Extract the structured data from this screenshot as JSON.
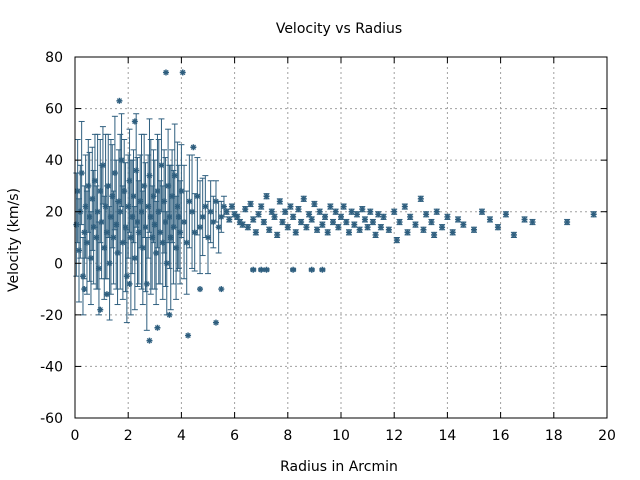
{
  "chart_data": {
    "type": "scatter",
    "title": "Velocity vs Radius",
    "xlabel": "Radius in Arcmin",
    "ylabel": "Velocity (km/s)",
    "xlim": [
      0,
      20
    ],
    "ylim": [
      -60,
      80
    ],
    "xticks": [
      0,
      2,
      4,
      6,
      8,
      10,
      12,
      14,
      16,
      18,
      20
    ],
    "yticks": [
      -60,
      -40,
      -20,
      0,
      20,
      40,
      60,
      80
    ],
    "grid": true,
    "legend": "none",
    "colors": {
      "series": "#2f5f7f",
      "grid": "#a0a0a0",
      "frame": "#000000"
    },
    "series": [
      {
        "marker": "star",
        "error_bars": "vertical",
        "points": [
          [
            0.05,
            15,
            20
          ],
          [
            0.1,
            28,
            20
          ],
          [
            0.15,
            5,
            20
          ],
          [
            0.2,
            20,
            18
          ],
          [
            0.25,
            35,
            20
          ],
          [
            0.3,
            -5,
            15
          ],
          [
            0.35,
            12,
            18
          ],
          [
            0.4,
            22,
            20
          ],
          [
            0.45,
            8,
            20
          ],
          [
            0.5,
            30,
            18
          ],
          [
            0.55,
            18,
            25
          ],
          [
            0.6,
            2,
            18
          ],
          [
            0.65,
            25,
            20
          ],
          [
            0.7,
            14,
            22
          ],
          [
            0.75,
            32,
            18
          ],
          [
            0.8,
            10,
            20
          ],
          [
            0.85,
            20,
            30
          ],
          [
            0.9,
            -2,
            18
          ],
          [
            0.95,
            28,
            20
          ],
          [
            1.0,
            16,
            22
          ],
          [
            1.05,
            38,
            15
          ],
          [
            1.1,
            6,
            20
          ],
          [
            1.15,
            22,
            28
          ],
          [
            1.2,
            12,
            18
          ],
          [
            1.25,
            30,
            20
          ],
          [
            1.3,
            0,
            22
          ],
          [
            1.35,
            18,
            30
          ],
          [
            1.4,
            26,
            20
          ],
          [
            1.45,
            10,
            18
          ],
          [
            1.5,
            35,
            22
          ],
          [
            1.55,
            15,
            25
          ],
          [
            1.6,
            4,
            20
          ],
          [
            1.65,
            24,
            20
          ],
          [
            1.7,
            20,
            30
          ],
          [
            1.75,
            40,
            18
          ],
          [
            1.8,
            8,
            22
          ],
          [
            1.85,
            28,
            20
          ],
          [
            1.9,
            14,
            25
          ],
          [
            1.95,
            -5,
            18
          ],
          [
            2.0,
            22,
            20
          ],
          [
            2.05,
            32,
            20
          ],
          [
            2.1,
            10,
            30
          ],
          [
            2.15,
            18,
            22
          ],
          [
            2.2,
            26,
            18
          ],
          [
            2.25,
            2,
            20
          ],
          [
            2.3,
            36,
            22
          ],
          [
            2.35,
            16,
            25
          ],
          [
            2.4,
            12,
            20
          ],
          [
            2.45,
            24,
            18
          ],
          [
            2.5,
            20,
            30
          ],
          [
            2.55,
            6,
            22
          ],
          [
            2.6,
            30,
            20
          ],
          [
            2.65,
            14,
            25
          ],
          [
            2.7,
            -8,
            18
          ],
          [
            2.75,
            22,
            20
          ],
          [
            2.8,
            34,
            22
          ],
          [
            2.85,
            18,
            30
          ],
          [
            2.9,
            10,
            20
          ],
          [
            2.95,
            26,
            18
          ],
          [
            3.0,
            15,
            25
          ],
          [
            3.05,
            4,
            20
          ],
          [
            3.1,
            28,
            22
          ],
          [
            3.15,
            20,
            28
          ],
          [
            3.2,
            12,
            20
          ],
          [
            3.25,
            38,
            18
          ],
          [
            3.3,
            8,
            22
          ],
          [
            3.35,
            24,
            20
          ],
          [
            3.4,
            16,
            25
          ],
          [
            3.45,
            0,
            20
          ],
          [
            3.5,
            30,
            22
          ],
          [
            3.55,
            18,
            20
          ],
          [
            3.6,
            10,
            28
          ],
          [
            3.65,
            26,
            18
          ],
          [
            3.7,
            14,
            22
          ],
          [
            3.75,
            34,
            20
          ],
          [
            3.8,
            6,
            20
          ],
          [
            3.85,
            22,
            25
          ],
          [
            3.9,
            18,
            20
          ],
          [
            3.95,
            12,
            20
          ],
          [
            4.0,
            28,
            18
          ],
          [
            4.1,
            16,
            22
          ],
          [
            4.2,
            8,
            20
          ],
          [
            4.3,
            24,
            18
          ],
          [
            4.4,
            20,
            22
          ],
          [
            4.5,
            12,
            15
          ],
          [
            4.6,
            26,
            15
          ],
          [
            4.7,
            14,
            18
          ],
          [
            4.8,
            18,
            15
          ],
          [
            4.9,
            22,
            12
          ],
          [
            5.0,
            10,
            14
          ],
          [
            5.1,
            20,
            12
          ],
          [
            5.2,
            16,
            10
          ],
          [
            5.3,
            24,
            8
          ],
          [
            5.4,
            14,
            10
          ],
          [
            5.5,
            18,
            6
          ],
          [
            5.6,
            22,
            4
          ],
          [
            1.67,
            63,
            0
          ],
          [
            3.42,
            74,
            0
          ],
          [
            4.05,
            74,
            0
          ],
          [
            2.05,
            -8,
            0
          ],
          [
            2.8,
            -30,
            0
          ],
          [
            3.1,
            -25,
            0
          ],
          [
            3.55,
            -20,
            0
          ],
          [
            4.25,
            -28,
            0
          ],
          [
            4.7,
            -10,
            0
          ],
          [
            5.5,
            -10,
            0
          ],
          [
            0.95,
            -18,
            0
          ],
          [
            1.2,
            -12,
            0
          ],
          [
            0.35,
            -10,
            0
          ],
          [
            5.3,
            -23,
            0
          ],
          [
            4.45,
            45,
            0
          ],
          [
            2.25,
            55,
            0
          ],
          [
            5.7,
            20,
            1
          ],
          [
            5.8,
            17,
            1
          ],
          [
            5.9,
            22,
            1
          ],
          [
            6.0,
            19,
            1
          ],
          [
            6.1,
            18,
            1
          ],
          [
            6.2,
            16,
            1
          ],
          [
            6.3,
            15,
            1
          ],
          [
            6.4,
            21,
            1
          ],
          [
            6.5,
            14,
            1
          ],
          [
            6.6,
            23,
            1
          ],
          [
            6.7,
            17,
            1
          ],
          [
            6.8,
            12,
            1
          ],
          [
            6.9,
            19,
            1
          ],
          [
            7.0,
            22,
            1
          ],
          [
            7.1,
            16,
            1
          ],
          [
            7.2,
            26,
            1
          ],
          [
            7.3,
            13,
            1
          ],
          [
            7.4,
            20,
            1
          ],
          [
            7.5,
            18,
            1
          ],
          [
            7.6,
            11,
            1
          ],
          [
            7.7,
            24,
            1
          ],
          [
            7.8,
            16,
            1
          ],
          [
            7.9,
            20,
            1
          ],
          [
            8.0,
            14,
            1
          ],
          [
            8.1,
            22,
            1
          ],
          [
            8.2,
            18,
            1
          ],
          [
            8.3,
            12,
            1
          ],
          [
            8.4,
            21,
            1
          ],
          [
            8.5,
            16,
            1
          ],
          [
            8.6,
            25,
            1
          ],
          [
            8.7,
            14,
            1
          ],
          [
            8.8,
            19,
            1
          ],
          [
            8.9,
            17,
            1
          ],
          [
            9.0,
            23,
            1
          ],
          [
            9.1,
            13,
            1
          ],
          [
            9.2,
            20,
            1
          ],
          [
            9.3,
            15,
            1
          ],
          [
            9.4,
            18,
            1
          ],
          [
            9.5,
            12,
            1
          ],
          [
            9.6,
            22,
            1
          ],
          [
            9.7,
            16,
            1
          ],
          [
            9.8,
            20,
            1
          ],
          [
            9.9,
            14,
            1
          ],
          [
            10.0,
            18,
            1
          ],
          [
            10.1,
            22,
            1
          ],
          [
            10.2,
            16,
            1
          ],
          [
            10.3,
            12,
            1
          ],
          [
            10.4,
            20,
            1
          ],
          [
            10.5,
            15,
            1
          ],
          [
            10.6,
            19,
            1
          ],
          [
            10.7,
            13,
            1
          ],
          [
            10.8,
            21,
            1
          ],
          [
            10.9,
            17,
            1
          ],
          [
            11.0,
            14,
            1
          ],
          [
            11.1,
            20,
            1
          ],
          [
            11.2,
            16,
            1
          ],
          [
            11.3,
            11,
            1
          ],
          [
            11.4,
            19,
            1
          ],
          [
            11.5,
            14,
            1
          ],
          [
            11.6,
            18,
            1
          ],
          [
            11.8,
            13,
            1
          ],
          [
            12.0,
            20,
            1
          ],
          [
            12.1,
            9,
            1
          ],
          [
            12.2,
            16,
            1
          ],
          [
            12.4,
            22,
            1
          ],
          [
            12.5,
            12,
            1
          ],
          [
            12.6,
            18,
            1
          ],
          [
            12.8,
            15,
            1
          ],
          [
            13.0,
            25,
            1
          ],
          [
            13.1,
            13,
            1
          ],
          [
            13.2,
            19,
            1
          ],
          [
            13.4,
            16,
            1
          ],
          [
            13.5,
            11,
            1
          ],
          [
            13.6,
            20,
            1
          ],
          [
            13.8,
            14,
            1
          ],
          [
            14.0,
            18,
            1
          ],
          [
            14.2,
            12,
            1
          ],
          [
            14.4,
            17,
            1
          ],
          [
            14.6,
            15,
            1
          ],
          [
            15.0,
            13,
            1
          ],
          [
            15.3,
            20,
            1
          ],
          [
            15.6,
            17,
            1
          ],
          [
            15.9,
            14,
            1
          ],
          [
            16.2,
            19,
            1
          ],
          [
            16.5,
            11,
            1
          ],
          [
            16.9,
            17,
            1
          ],
          [
            17.2,
            16,
            1
          ],
          [
            18.5,
            16,
            1
          ],
          [
            19.5,
            19,
            1
          ],
          [
            6.7,
            -2.5,
            0.5
          ],
          [
            7.0,
            -2.5,
            0.5
          ],
          [
            7.2,
            -2.5,
            0.5
          ],
          [
            8.2,
            -2.5,
            0.5
          ],
          [
            8.9,
            -2.5,
            0.5
          ],
          [
            9.3,
            -2.5,
            0.5
          ]
        ]
      }
    ]
  }
}
